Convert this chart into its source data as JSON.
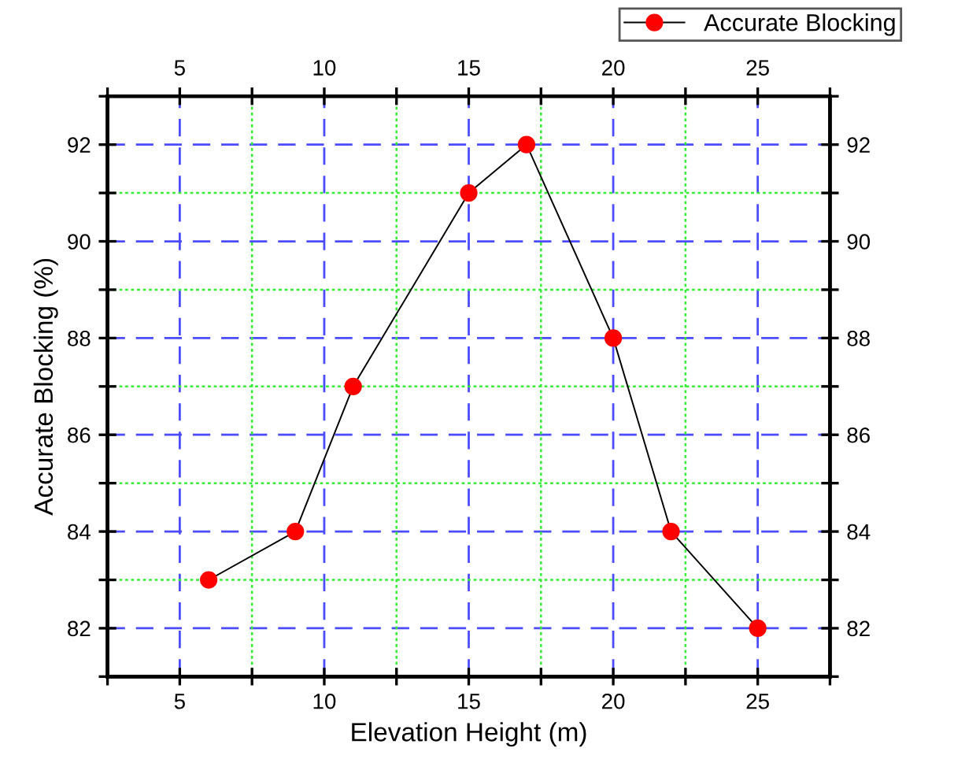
{
  "chart_data": {
    "type": "line",
    "xlabel": "Elevation Height (m)",
    "ylabel": "Accurate Blocking (%)",
    "x": [
      6,
      9,
      11,
      15,
      17,
      20,
      22,
      25
    ],
    "series": [
      {
        "name": "Accurate Blocking",
        "color": "#ff0000",
        "values": [
          83,
          84,
          87,
          91,
          92,
          88,
          84,
          82
        ]
      }
    ],
    "xlim": [
      2.5,
      27.5
    ],
    "xticks": [
      {
        "value": 2.5,
        "label": null
      },
      5,
      {
        "value": 7.5,
        "label": null
      },
      10,
      {
        "value": 12.5,
        "label": null
      },
      15,
      {
        "value": 17.5,
        "label": null
      },
      20,
      {
        "value": 22.5,
        "label": null
      },
      25,
      {
        "value": 27.5,
        "label": null
      }
    ],
    "x2lim": [
      2.5,
      27.5
    ],
    "x2ticks": [
      {
        "value": 2.5,
        "label": null
      },
      5,
      {
        "value": 7.5,
        "label": null
      },
      10,
      {
        "value": 12.5,
        "label": null
      },
      15,
      {
        "value": 17.5,
        "label": null
      },
      20,
      {
        "value": 22.5,
        "label": null
      },
      25,
      {
        "value": 27.5,
        "label": null
      }
    ],
    "ylim": [
      81,
      93
    ],
    "yticks": [
      {
        "value": 81,
        "label": null
      },
      82,
      {
        "value": 83,
        "label": null
      },
      84,
      {
        "value": 85,
        "label": null
      },
      86,
      {
        "value": 87,
        "label": null
      },
      88,
      {
        "value": 89,
        "label": null
      },
      90,
      {
        "value": 91,
        "label": null
      },
      92,
      {
        "value": 93,
        "label": null
      }
    ],
    "y2lim": [
      81,
      93
    ],
    "y2ticks": [
      {
        "value": 81,
        "label": null
      },
      82,
      {
        "value": 83,
        "label": null
      },
      84,
      {
        "value": 85,
        "label": null
      },
      86,
      {
        "value": 87,
        "label": null
      },
      88,
      {
        "value": 89,
        "label": null
      },
      90,
      {
        "value": 91,
        "label": null
      },
      92,
      {
        "value": 93,
        "label": null
      }
    ],
    "grid": true,
    "legend": "top right",
    "marker": "circle",
    "line_style": "solid"
  }
}
